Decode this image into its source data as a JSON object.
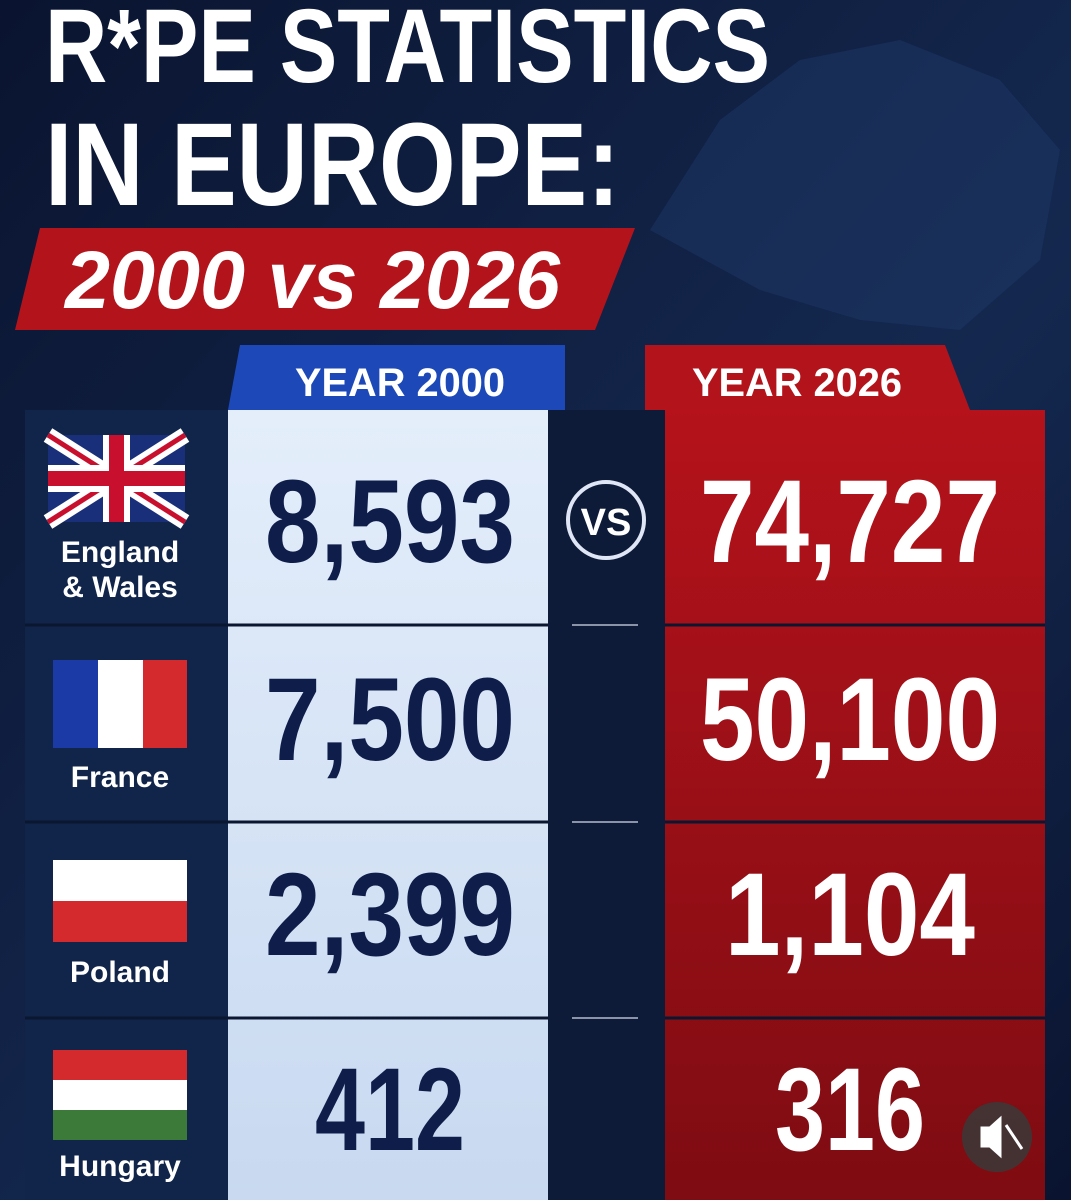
{
  "header": {
    "title_lines": [
      "R*PE STATISTICS",
      "IN EUROPE:"
    ],
    "subtitle": "2000 vs 2026"
  },
  "table": {
    "columns": [
      "YEAR 2000",
      "YEAR 2026"
    ],
    "separator": "VS",
    "rows": [
      {
        "country_lines": [
          "England",
          "& Wales"
        ],
        "values": [
          "8,593",
          "74,727"
        ]
      },
      {
        "country_lines": [
          "France"
        ],
        "values": [
          "7,500",
          "50,100"
        ]
      },
      {
        "country_lines": [
          "Poland"
        ],
        "values": [
          "2,399",
          "1,104"
        ]
      },
      {
        "country_lines": [
          "Hungary"
        ],
        "values": [
          "412",
          "316"
        ]
      }
    ]
  }
}
